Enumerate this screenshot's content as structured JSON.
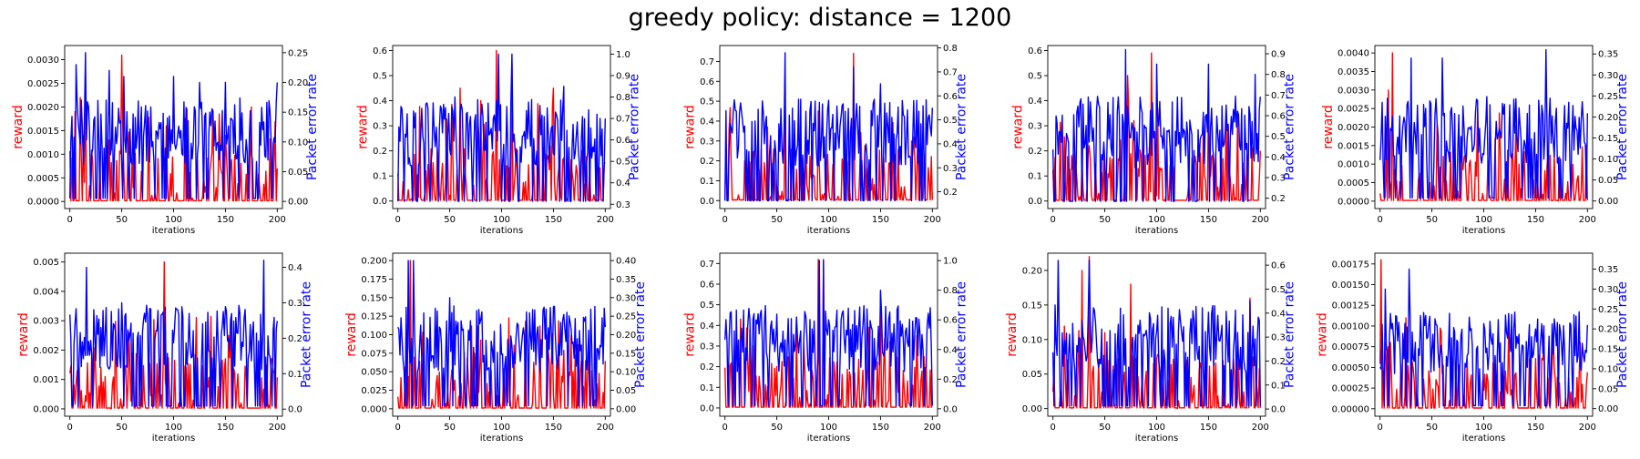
{
  "figure": {
    "title": "greedy policy: distance = 1200",
    "colors": {
      "reward": "#ff0000",
      "per": "#0000ff"
    }
  },
  "chart_data": [
    {
      "type": "line",
      "xlabel": "iterations",
      "ylabel_left": "reward",
      "ylabel_right": "Packet error rate",
      "xlim": [
        -5,
        205
      ],
      "xticks": [
        0,
        50,
        100,
        150,
        200
      ],
      "ylim_left": [
        -0.00015,
        0.0033
      ],
      "yticks_left": [
        "0.0000",
        "0.0005",
        "0.0010",
        "0.0015",
        "0.0020",
        "0.0025",
        "0.0030"
      ],
      "ylim_right": [
        -0.012,
        0.262
      ],
      "yticks_right": [
        "0.00",
        "0.05",
        "0.10",
        "0.15",
        "0.20",
        "0.25"
      ],
      "series": [
        {
          "name": "reward",
          "axis": "left",
          "peaks": [
            [
              5,
              0.0019
            ],
            [
              10,
              0.0022
            ],
            [
              15,
              0.0027
            ],
            [
              50,
              0.0031
            ],
            [
              93,
              0.0016
            ],
            [
              150,
              0.0014
            ],
            [
              175,
              0.002
            ],
            [
              200,
              0.0007
            ]
          ]
        },
        {
          "name": "Packet error rate",
          "axis": "right",
          "peaks": [
            [
              6,
              0.23
            ],
            [
              15,
              0.25
            ],
            [
              38,
              0.22
            ],
            [
              52,
              0.21
            ],
            [
              100,
              0.21
            ],
            [
              125,
              0.2
            ],
            [
              150,
              0.2
            ],
            [
              200,
              0.2
            ]
          ]
        }
      ]
    },
    {
      "type": "line",
      "xlabel": "iterations",
      "ylabel_left": "reward",
      "ylabel_right": "Packet error rate",
      "xlim": [
        -5,
        205
      ],
      "xticks": [
        0,
        50,
        100,
        150,
        200
      ],
      "ylim_left": [
        -0.03,
        0.62
      ],
      "yticks_left": [
        "0.0",
        "0.1",
        "0.2",
        "0.3",
        "0.4",
        "0.5",
        "0.6"
      ],
      "ylim_right": [
        0.28,
        1.04
      ],
      "yticks_right": [
        "0.3",
        "0.4",
        "0.5",
        "0.6",
        "0.7",
        "0.8",
        "0.9",
        "1.0"
      ],
      "series": [
        {
          "name": "reward",
          "axis": "left",
          "peaks": [
            [
              60,
              0.45
            ],
            [
              80,
              0.4
            ],
            [
              95,
              0.6
            ],
            [
              110,
              0.55
            ],
            [
              150,
              0.45
            ],
            [
              200,
              0.15
            ]
          ]
        },
        {
          "name": "Packet error rate",
          "axis": "right",
          "peaks": [
            [
              55,
              0.8
            ],
            [
              97,
              1.0
            ],
            [
              110,
              1.0
            ],
            [
              160,
              0.85
            ],
            [
              200,
              0.7
            ]
          ]
        }
      ]
    },
    {
      "type": "line",
      "xlabel": "iterations",
      "ylabel_left": "reward",
      "ylabel_right": "Packet error rate",
      "xlim": [
        -5,
        205
      ],
      "xticks": [
        0,
        50,
        100,
        150,
        200
      ],
      "ylim_left": [
        -0.04,
        0.78
      ],
      "yticks_left": [
        "0.0",
        "0.1",
        "0.2",
        "0.3",
        "0.4",
        "0.5",
        "0.6",
        "0.7"
      ],
      "ylim_right": [
        0.13,
        0.81
      ],
      "yticks_right": [
        "0.2",
        "0.3",
        "0.4",
        "0.5",
        "0.6",
        "0.7",
        "0.8"
      ],
      "series": [
        {
          "name": "reward",
          "axis": "left",
          "peaks": [
            [
              58,
              0.5
            ],
            [
              90,
              0.45
            ],
            [
              124,
              0.74
            ],
            [
              180,
              0.3
            ]
          ]
        },
        {
          "name": "Packet error rate",
          "axis": "right",
          "peaks": [
            [
              58,
              0.78
            ],
            [
              124,
              0.72
            ],
            [
              150,
              0.65
            ],
            [
              200,
              0.55
            ]
          ]
        }
      ]
    },
    {
      "type": "line",
      "xlabel": "iterations",
      "ylabel_left": "reward",
      "ylabel_right": "Packet error rate",
      "xlim": [
        -5,
        205
      ],
      "xticks": [
        0,
        50,
        100,
        150,
        200
      ],
      "ylim_left": [
        -0.03,
        0.62
      ],
      "yticks_left": [
        "0.0",
        "0.1",
        "0.2",
        "0.3",
        "0.4",
        "0.5",
        "0.6"
      ],
      "ylim_right": [
        0.15,
        0.94
      ],
      "yticks_right": [
        "0.2",
        "0.3",
        "0.4",
        "0.5",
        "0.6",
        "0.7",
        "0.8",
        "0.9"
      ],
      "series": [
        {
          "name": "reward",
          "axis": "left",
          "peaks": [
            [
              72,
              0.5
            ],
            [
              95,
              0.59
            ],
            [
              150,
              0.45
            ],
            [
              200,
              0.2
            ]
          ]
        },
        {
          "name": "Packet error rate",
          "axis": "right",
          "peaks": [
            [
              70,
              0.92
            ],
            [
              100,
              0.85
            ],
            [
              150,
              0.85
            ],
            [
              195,
              0.8
            ]
          ]
        }
      ]
    },
    {
      "type": "line",
      "xlabel": "iterations",
      "ylabel_left": "reward",
      "ylabel_right": "Packet error rate",
      "xlim": [
        -5,
        205
      ],
      "xticks": [
        0,
        50,
        100,
        150,
        200
      ],
      "ylim_left": [
        -0.0002,
        0.0042
      ],
      "yticks_left": [
        "0.0000",
        "0.0005",
        "0.0010",
        "0.0015",
        "0.0020",
        "0.0025",
        "0.0030",
        "0.0035",
        "0.0040"
      ],
      "ylim_right": [
        -0.018,
        0.37
      ],
      "yticks_right": [
        "0.00",
        "0.05",
        "0.10",
        "0.15",
        "0.20",
        "0.25",
        "0.30",
        "0.35"
      ],
      "series": [
        {
          "name": "reward",
          "axis": "left",
          "peaks": [
            [
              8,
              0.003
            ],
            [
              12,
              0.004
            ]
          ]
        },
        {
          "name": "Packet error rate",
          "axis": "right",
          "peaks": [
            [
              30,
              0.34
            ],
            [
              60,
              0.34
            ],
            [
              160,
              0.36
            ]
          ]
        }
      ]
    },
    {
      "type": "line",
      "xlabel": "iterations",
      "ylabel_left": "reward",
      "ylabel_right": "Packet error rate",
      "xlim": [
        -5,
        205
      ],
      "xticks": [
        0,
        50,
        100,
        150,
        200
      ],
      "ylim_left": [
        -0.00025,
        0.0053
      ],
      "yticks_left": [
        "0.000",
        "0.001",
        "0.002",
        "0.003",
        "0.004",
        "0.005"
      ],
      "ylim_right": [
        -0.02,
        0.44
      ],
      "yticks_right": [
        "0.0",
        "0.1",
        "0.2",
        "0.3",
        "0.4"
      ],
      "series": [
        {
          "name": "reward",
          "axis": "left",
          "peaks": [
            [
              91,
              0.005
            ],
            [
              150,
              0.0017
            ]
          ]
        },
        {
          "name": "Packet error rate",
          "axis": "right",
          "peaks": [
            [
              16,
              0.4
            ],
            [
              50,
              0.3
            ],
            [
              187,
              0.42
            ]
          ]
        }
      ]
    },
    {
      "type": "line",
      "xlabel": "iterations",
      "ylabel_left": "reward",
      "ylabel_right": "Packet error rate",
      "xlim": [
        -5,
        205
      ],
      "xticks": [
        0,
        50,
        100,
        150,
        200
      ],
      "ylim_left": [
        -0.01,
        0.21
      ],
      "yticks_left": [
        "0.000",
        "0.025",
        "0.050",
        "0.075",
        "0.100",
        "0.125",
        "0.150",
        "0.175",
        "0.200"
      ],
      "ylim_right": [
        -0.02,
        0.42
      ],
      "yticks_right": [
        "0.00",
        "0.05",
        "0.10",
        "0.15",
        "0.20",
        "0.25",
        "0.30",
        "0.35",
        "0.40"
      ],
      "series": [
        {
          "name": "reward",
          "axis": "left",
          "peaks": [
            [
              12,
              0.2
            ]
          ]
        },
        {
          "name": "Packet error rate",
          "axis": "right",
          "peaks": [
            [
              10,
              0.4
            ],
            [
              15,
              0.4
            ],
            [
              50,
              0.3
            ]
          ]
        }
      ]
    },
    {
      "type": "line",
      "xlabel": "iterations",
      "ylabel_left": "reward",
      "ylabel_right": "Packet error rate",
      "xlim": [
        -5,
        205
      ],
      "xticks": [
        0,
        50,
        100,
        150,
        200
      ],
      "ylim_left": [
        -0.04,
        0.75
      ],
      "yticks_left": [
        "0.0",
        "0.1",
        "0.2",
        "0.3",
        "0.4",
        "0.5",
        "0.6",
        "0.7"
      ],
      "ylim_right": [
        -0.05,
        1.05
      ],
      "yticks_right": [
        "0.0",
        "0.2",
        "0.4",
        "0.6",
        "0.8",
        "1.0"
      ],
      "series": [
        {
          "name": "reward",
          "axis": "left",
          "peaks": [
            [
              90,
              0.72
            ],
            [
              95,
              0.72
            ],
            [
              150,
              0.55
            ]
          ]
        },
        {
          "name": "Packet error rate",
          "axis": "right",
          "peaks": [
            [
              91,
              1.0
            ],
            [
              95,
              1.0
            ],
            [
              150,
              0.8
            ]
          ]
        }
      ]
    },
    {
      "type": "line",
      "xlabel": "iterations",
      "ylabel_left": "reward",
      "ylabel_right": "Packet error rate",
      "xlim": [
        -5,
        205
      ],
      "xticks": [
        0,
        50,
        100,
        150,
        200
      ],
      "ylim_left": [
        -0.011,
        0.225
      ],
      "yticks_left": [
        "0.00",
        "0.05",
        "0.10",
        "0.15",
        "0.20"
      ],
      "ylim_right": [
        -0.03,
        0.65
      ],
      "yticks_right": [
        "0.0",
        "0.1",
        "0.2",
        "0.3",
        "0.4",
        "0.5",
        "0.6"
      ],
      "series": [
        {
          "name": "reward",
          "axis": "left",
          "peaks": [
            [
              28,
              0.2
            ],
            [
              35,
              0.22
            ],
            [
              75,
              0.18
            ],
            [
              190,
              0.16
            ]
          ]
        },
        {
          "name": "Packet error rate",
          "axis": "right",
          "peaks": [
            [
              5,
              0.62
            ],
            [
              35,
              0.62
            ],
            [
              190,
              0.45
            ]
          ]
        }
      ]
    },
    {
      "type": "line",
      "xlabel": "iterations",
      "ylabel_left": "reward",
      "ylabel_right": "Packet error rate",
      "xlim": [
        -5,
        205
      ],
      "xticks": [
        0,
        50,
        100,
        150,
        200
      ],
      "ylim_left": [
        -9e-05,
        0.00188
      ],
      "yticks_left": [
        "0.00000",
        "0.00025",
        "0.00050",
        "0.00075",
        "0.00100",
        "0.00125",
        "0.00150",
        "0.00175"
      ],
      "ylim_right": [
        -0.019,
        0.39
      ],
      "yticks_right": [
        "0.00",
        "0.05",
        "0.10",
        "0.15",
        "0.20",
        "0.25",
        "0.30",
        "0.35"
      ],
      "series": [
        {
          "name": "reward",
          "axis": "left",
          "peaks": [
            [
              1,
              0.0018
            ],
            [
              5,
              0.0008
            ],
            [
              10,
              0.0008
            ]
          ]
        },
        {
          "name": "Packet error rate",
          "axis": "right",
          "peaks": [
            [
              5,
              0.3
            ],
            [
              28,
              0.35
            ],
            [
              200,
              0.21
            ]
          ]
        }
      ]
    }
  ]
}
